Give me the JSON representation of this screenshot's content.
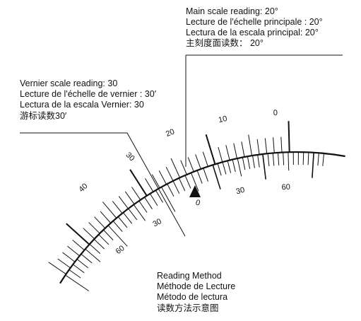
{
  "main_scale_reading": [
    "Main scale reading: 20°",
    "Lecture de l'échelle principale : 20°",
    "Lectura de la escala principal: 20°",
    "主刻度面读数： 20°"
  ],
  "vernier_scale_reading": [
    "Vernier scale reading: 30",
    "Lecture de l'échelle de vernier : 30′",
    "Lectura de la escala Vernier: 30",
    "游标读数30′"
  ],
  "caption": [
    "Reading Method",
    "Méthode de Lecture",
    "Método de lectura",
    "读数方法示意图"
  ],
  "main_scale_numbers": [
    "0",
    "10",
    "20",
    "30",
    "40"
  ],
  "vernier_scale_numbers": [
    "0",
    "30",
    "60"
  ],
  "lower_scale_numbers": [
    "30",
    "60"
  ],
  "colors": {
    "ink": "#111111",
    "background": "#ffffff"
  }
}
